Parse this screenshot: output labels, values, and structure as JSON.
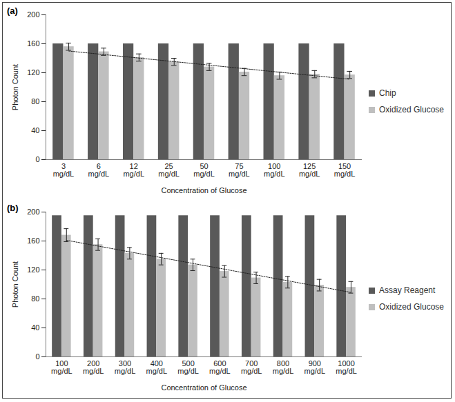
{
  "chart_data": [
    {
      "type": "bar",
      "label": "(a)",
      "x_label": "Concentration of Glucose",
      "y_label": "Photon Count",
      "categories": [
        "3 mg/dL",
        "6 mg/dL",
        "12 mg/dL",
        "25 mg/dL",
        "50 mg/dL",
        "75 mg/dL",
        "100 mg/dL",
        "125 mg/dL",
        "150 mg/dL"
      ],
      "series": [
        {
          "name": "Chip",
          "color": "#595959",
          "values": [
            160,
            160,
            160,
            160,
            160,
            160,
            160,
            160,
            160
          ]
        },
        {
          "name": "Oxidized Glucose",
          "color": "#bfbfbf",
          "values": [
            156,
            149,
            141,
            135,
            128,
            121,
            116,
            118,
            117
          ],
          "error": [
            5,
            5,
            5,
            5,
            5,
            5,
            5,
            5,
            5
          ],
          "trendline": [
            150,
            111
          ]
        }
      ],
      "ylim": [
        0,
        200
      ],
      "yticks": [
        0,
        40,
        80,
        120,
        160,
        200
      ],
      "legend": "right"
    },
    {
      "type": "bar",
      "label": "(b)",
      "x_label": "Concentration of Glucose",
      "y_label": "Photon Count",
      "categories": [
        "100 mg/dL",
        "200 mg/dL",
        "300 mg/dL",
        "400 mg/dL",
        "500 mg/dL",
        "600 mg/dL",
        "700 mg/dL",
        "800 mg/dL",
        "900 mg/dL",
        "1000 mg/dL"
      ],
      "series": [
        {
          "name": "Assay Reagent",
          "color": "#595959",
          "values": [
            195,
            195,
            195,
            195,
            195,
            195,
            195,
            195,
            195,
            195
          ]
        },
        {
          "name": "Oxidized Glucose",
          "color": "#bfbfbf",
          "values": [
            168,
            155,
            143,
            135,
            127,
            118,
            109,
            103,
            99,
            96
          ],
          "error": [
            9,
            8,
            8,
            8,
            8,
            8,
            8,
            8,
            8,
            8
          ],
          "trendline": [
            161,
            89
          ]
        }
      ],
      "ylim": [
        0,
        200
      ],
      "yticks": [
        0,
        40,
        80,
        120,
        160,
        200
      ],
      "legend": "right"
    }
  ]
}
